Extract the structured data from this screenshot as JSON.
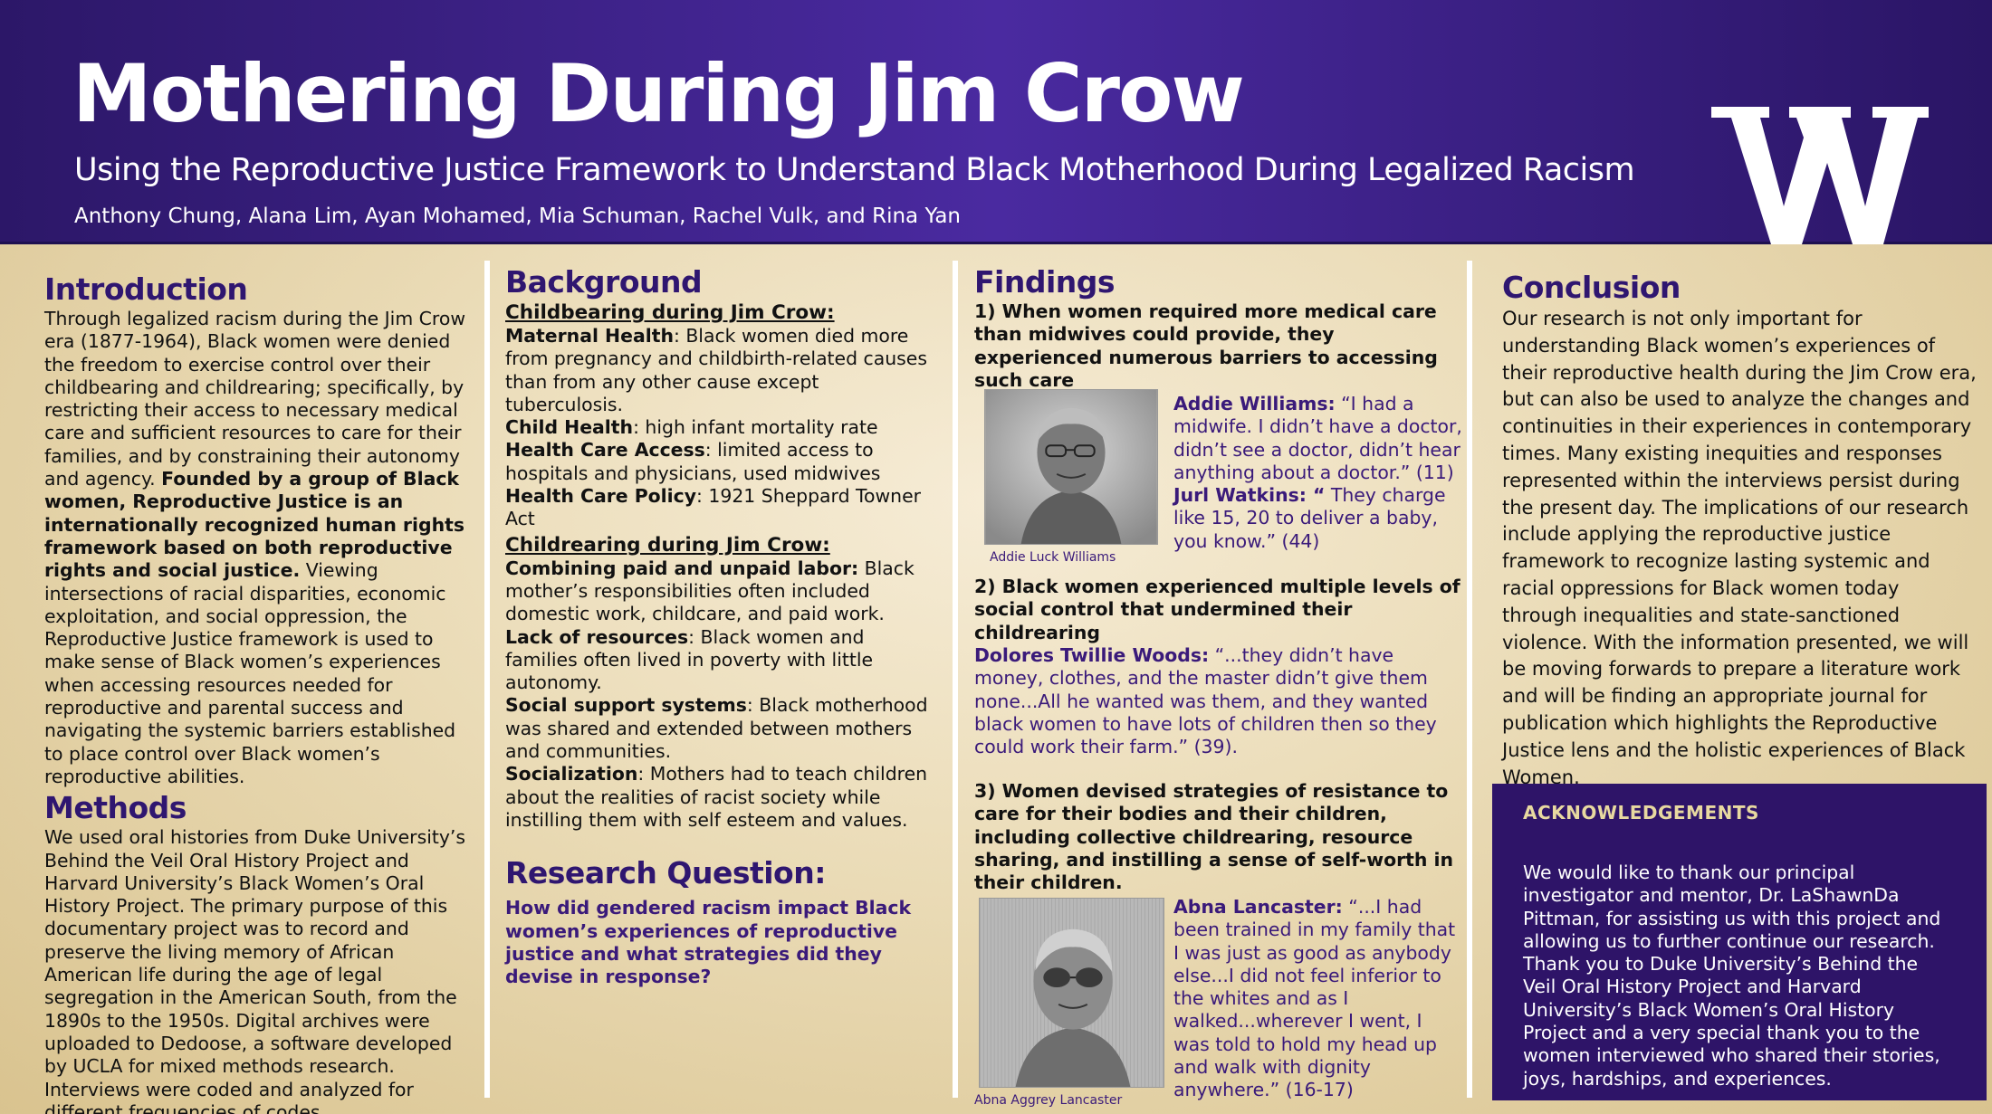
{
  "header": {
    "title": "Mothering During Jim Crow",
    "subtitle": "Using the Reproductive Justice Framework to Understand Black Motherhood During Legalized Racism",
    "authors": "Anthony Chung, Alana Lim, Ayan Mohamed, Mia Schuman, Rachel Vulk, and Rina Yan",
    "logo_letter": "W"
  },
  "introduction": {
    "heading": "Introduction",
    "text_1": "Through legalized racism during the Jim Crow era (1877-1964),  Black women were denied the freedom to exercise control over their childbearing and childrearing; specifically, by restricting their access to necessary medical care and sufficient resources to care for their families, and by constraining their autonomy and agency.",
    "text_bold": "Founded by a group of Black women, Reproductive Justice is an internationally recognized human rights framework based on both reproductive rights and social justice.",
    "text_2": "Viewing intersections of racial disparities, economic exploitation, and social oppression, the Reproductive Justice framework is used to make sense of Black women’s experiences when accessing resources needed for reproductive and parental success and navigating the systemic barriers established to place control over Black women’s reproductive abilities."
  },
  "methods": {
    "heading": "Methods",
    "text": "We used oral histories from Duke University’s Behind the Veil Oral History Project and Harvard University’s Black Women’s Oral History Project. The primary purpose of this documentary project was to record and preserve the living memory of African American life during the age of legal segregation in the American South, from the 1890s to the 1950s. Digital archives were uploaded to Dedoose, a software developed by UCLA for mixed methods research. Interviews were coded and analyzed for different frequencies of codes."
  },
  "background": {
    "heading": "Background",
    "sub_1": "Childbearing during Jim Crow:",
    "items_1": [
      {
        "label": "Maternal Health",
        "text": ": Black women died more from pregnancy and childbirth-related causes than from any other cause except tuberculosis."
      },
      {
        "label": "Child Health",
        "text": ": high infant mortality rate"
      },
      {
        "label": "Health Care Access",
        "text": ": limited access to hospitals and physicians, used midwives"
      },
      {
        "label": "Health Care Policy",
        "text": ": 1921 Sheppard Towner Act"
      }
    ],
    "sub_2": "Childrearing during Jim Crow:",
    "items_2": [
      {
        "label": "Combining paid and unpaid labor:",
        "text": " Black mother’s responsibilities often included domestic work, childcare, and paid work."
      },
      {
        "label": "Lack of resources",
        "text": ": Black women and families often lived in poverty with little autonomy."
      },
      {
        "label": "Social support systems",
        "text": ": Black motherhood was shared and extended between mothers and communities."
      },
      {
        "label": "Socialization",
        "text": ": Mothers had to teach children about the realities of racist society while instilling them with self esteem and values."
      }
    ]
  },
  "research_question": {
    "heading": "Research Question:",
    "text": "How did gendered racism impact Black women’s experiences of reproductive justice and what strategies did they devise in response?"
  },
  "findings": {
    "heading": "Findings",
    "f1": "1) When women required more medical care than midwives could provide, they experienced numerous barriers to accessing such care",
    "q1_name": "Addie Williams:",
    "q1_text": " “I had a midwife. I didn’t have a doctor, didn’t see a doctor, didn’t hear anything about a doctor.” (11)",
    "q2_name": "Jurl Watkins: “",
    "q2_text": " They charge like 15, 20 to deliver a baby, you know.” (44)",
    "photo1_caption": "Addie Luck Williams",
    "f2": " 2) Black women experienced multiple levels of social control that undermined their childrearing",
    "q3_name": "Dolores Twillie Woods:",
    "q3_text": " “...they didn’t have money, clothes, and the master didn’t give them none...All he wanted was them, and they wanted black women to have lots of children then so they could work their farm.” (39).",
    "f3": " 3) Women devised strategies of resistance to care for their bodies and their children, including collective childrearing, resource sharing, and instilling a sense of self-worth in their children.",
    "q4_name": "Abna Lancaster:",
    "q4_text": "  “...I had been trained in my family that I was just as good as anybody else...I did not feel inferior to the whites and as I walked...wherever I went, I was told to hold my head up and walk with dignity anywhere.” (16-17)",
    "photo2_caption": "Abna Aggrey Lancaster"
  },
  "conclusion": {
    "heading": "Conclusion",
    "text": "Our research is not only important for understanding Black women’s experiences of their reproductive health during the Jim Crow era, but can also be used to analyze the changes and continuities in their experiences in contemporary times. Many existing inequities and responses represented within the interviews persist during the present day. The implications of our research include applying the reproductive justice framework to recognize lasting systemic and racial oppressions for Black women today through inequalities and state-sanctioned violence. With the information presented, we will be moving forwards to prepare a literature work and will be finding an appropriate journal for publication which highlights the Reproductive Justice lens and the holistic experiences of Black Women."
  },
  "acknowledgements": {
    "heading": "ACKNOWLEDGEMENTS",
    "text": "We would like to thank our principal investigator and mentor, Dr. LaShawnDa Pittman, for assisting us with this project and allowing us to further continue our research. Thank you to Duke University’s Behind the Veil Oral History Project and Harvard University’s Black Women’s Oral History  Project and a very special thank you to the women interviewed who shared their stories, joys, hardships, and experiences."
  },
  "colors": {
    "header_purple": "#3b2088",
    "heading_purple": "#2f1670",
    "ack_bg": "#2e1468",
    "ack_title": "#e8d9a0"
  }
}
